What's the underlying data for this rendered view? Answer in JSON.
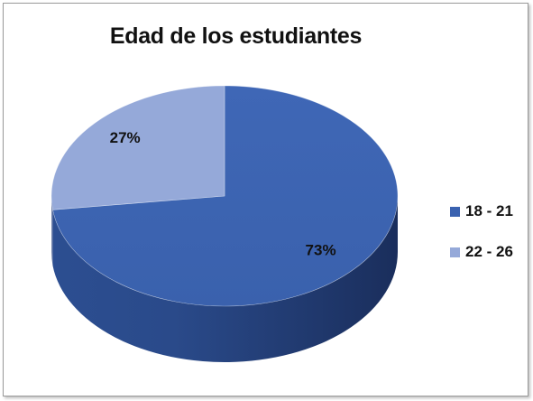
{
  "chart_data": {
    "type": "pie",
    "title": "Edad de los estudiantes",
    "categories": [
      "18 - 21",
      "22 - 26"
    ],
    "values": [
      73,
      27
    ],
    "data_labels": [
      "73%",
      "27%"
    ],
    "colors": [
      "#3A62B0",
      "#95A9D9"
    ],
    "legend_position": "right",
    "style": "3d"
  }
}
